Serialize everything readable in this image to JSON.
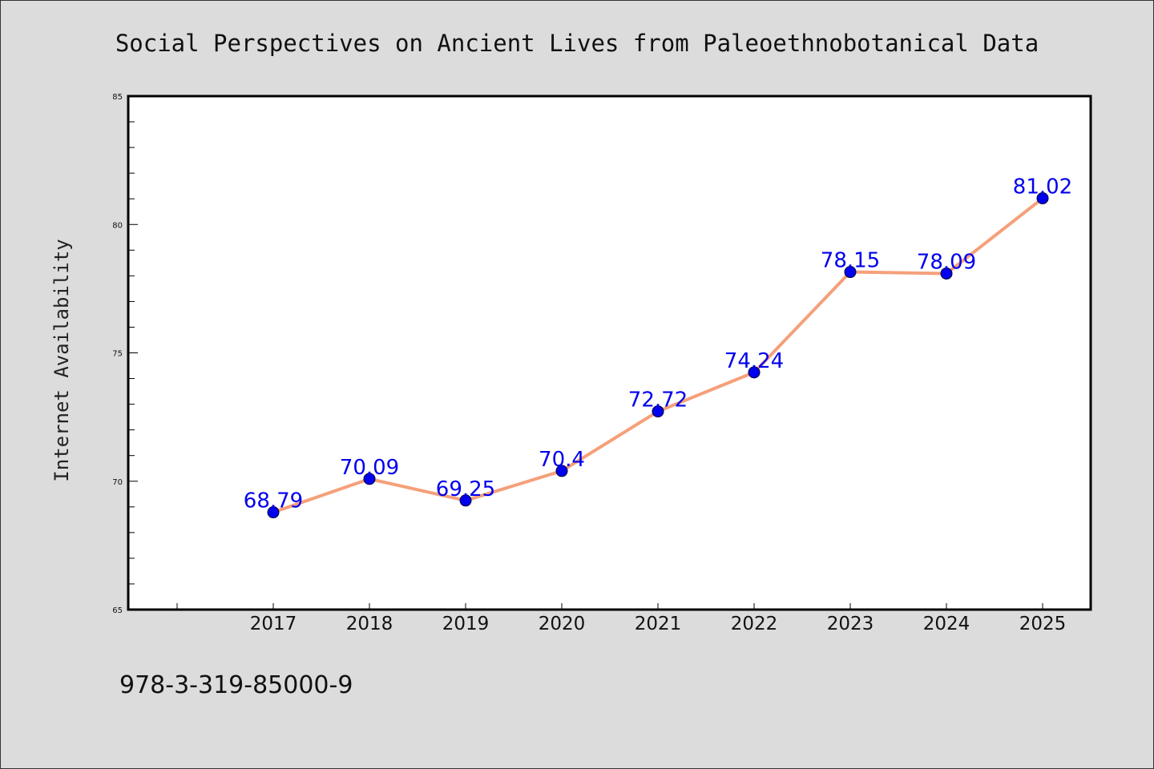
{
  "chart_data": {
    "type": "line",
    "title": "Social Perspectives on Ancient Lives from Paleoethnobotanical Data",
    "xlabel": "",
    "ylabel": "Internet Availability",
    "categories": [
      "2017",
      "2018",
      "2019",
      "2020",
      "2021",
      "2022",
      "2023",
      "2024",
      "2025"
    ],
    "series": [
      {
        "values": [
          68.79,
          70.09,
          69.25,
          70.4,
          72.72,
          74.24,
          78.15,
          78.09,
          81.02
        ],
        "data_labels": [
          "68.79",
          "70.09",
          "69.25",
          "70.4",
          "72.72",
          "74.24",
          "78.15",
          "78.09",
          "81.02"
        ],
        "line_color": "#f5a07a",
        "marker_color": "#0000ee"
      }
    ],
    "ylim": [
      65,
      85
    ],
    "yticks": [
      "65",
      "70",
      "75",
      "80",
      "85"
    ],
    "grid": false,
    "legend": "none",
    "label_color": "#0000ee"
  },
  "footer": {
    "isbn": "978-3-319-85000-9"
  },
  "colors": {
    "figure_background": "#dcdcdc",
    "plot_background": "#ffffff"
  }
}
